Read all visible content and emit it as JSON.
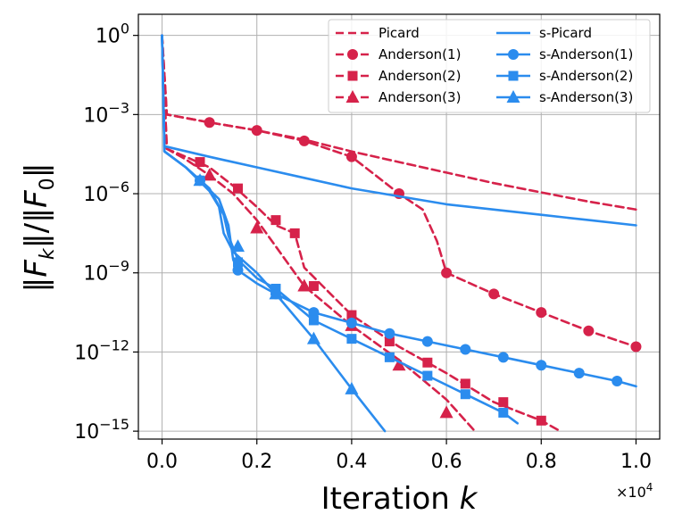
{
  "chart_data": {
    "type": "line",
    "xlabel": "Iteration k",
    "ylabel": "‖F_k‖/‖F_0‖",
    "x_offset_label": "×10^4",
    "xlim": [
      -0.05,
      1.05
    ],
    "ylim_log10": [
      -15.3,
      0.8
    ],
    "x_ticks": [
      0.0,
      0.2,
      0.4,
      0.6,
      0.8,
      1.0
    ],
    "x_tick_labels": [
      "0.0",
      "0.2",
      "0.4",
      "0.6",
      "0.8",
      "1.0"
    ],
    "y_ticks_log10": [
      0,
      -3,
      -6,
      -9,
      -12,
      -15
    ],
    "y_tick_labels": [
      {
        "base": "10",
        "exp": "0"
      },
      {
        "base": "10",
        "exp": "−3"
      },
      {
        "base": "10",
        "exp": "−6"
      },
      {
        "base": "10",
        "exp": "−9"
      },
      {
        "base": "10",
        "exp": "−12"
      },
      {
        "base": "10",
        "exp": "−15"
      }
    ],
    "grid": true,
    "legend_position": "top-right",
    "colors": {
      "red": "#d6224a",
      "blue": "#2b8cee"
    },
    "series": [
      {
        "name": "Picard",
        "color": "#d6224a",
        "dash": true,
        "marker": "none",
        "points": [
          [
            0,
            0
          ],
          [
            0.01,
            -3
          ],
          [
            0.1,
            -3.3
          ],
          [
            0.2,
            -3.6
          ],
          [
            0.3,
            -3.95
          ],
          [
            0.4,
            -4.4
          ],
          [
            0.5,
            -4.8
          ],
          [
            0.6,
            -5.2
          ],
          [
            0.7,
            -5.6
          ],
          [
            0.8,
            -5.95
          ],
          [
            0.9,
            -6.3
          ],
          [
            1.0,
            -6.6
          ]
        ],
        "markers": []
      },
      {
        "name": "Anderson(1)",
        "color": "#d6224a",
        "dash": true,
        "marker": "circle",
        "points": [
          [
            0,
            0
          ],
          [
            0.01,
            -3
          ],
          [
            0.1,
            -3.3
          ],
          [
            0.2,
            -3.6
          ],
          [
            0.3,
            -4.0
          ],
          [
            0.4,
            -4.6
          ],
          [
            0.45,
            -5.3
          ],
          [
            0.5,
            -6.0
          ],
          [
            0.55,
            -6.6
          ],
          [
            0.58,
            -7.8
          ],
          [
            0.6,
            -9.0
          ],
          [
            0.7,
            -9.8
          ],
          [
            0.8,
            -10.5
          ],
          [
            0.9,
            -11.2
          ],
          [
            1.0,
            -11.8
          ]
        ],
        "markers": [
          [
            0.1,
            -3.3
          ],
          [
            0.2,
            -3.6
          ],
          [
            0.3,
            -4.0
          ],
          [
            0.4,
            -4.6
          ],
          [
            0.5,
            -6.0
          ],
          [
            0.6,
            -9.0
          ],
          [
            0.7,
            -9.8
          ],
          [
            0.8,
            -10.5
          ],
          [
            0.9,
            -11.2
          ],
          [
            1.0,
            -11.8
          ]
        ]
      },
      {
        "name": "Anderson(2)",
        "color": "#d6224a",
        "dash": true,
        "marker": "square",
        "points": [
          [
            0,
            0
          ],
          [
            0.01,
            -4.3
          ],
          [
            0.05,
            -4.6
          ],
          [
            0.1,
            -5.0
          ],
          [
            0.15,
            -5.7
          ],
          [
            0.2,
            -6.5
          ],
          [
            0.24,
            -7.2
          ],
          [
            0.28,
            -7.5
          ],
          [
            0.3,
            -8.8
          ],
          [
            0.4,
            -10.6
          ],
          [
            0.5,
            -11.8
          ],
          [
            0.6,
            -12.8
          ],
          [
            0.7,
            -13.9
          ],
          [
            0.8,
            -14.6
          ],
          [
            0.84,
            -15.0
          ]
        ],
        "markers": [
          [
            0.08,
            -4.8
          ],
          [
            0.16,
            -5.8
          ],
          [
            0.24,
            -7.0
          ],
          [
            0.28,
            -7.5
          ],
          [
            0.32,
            -9.5
          ],
          [
            0.4,
            -10.6
          ],
          [
            0.48,
            -11.6
          ],
          [
            0.56,
            -12.4
          ],
          [
            0.64,
            -13.2
          ],
          [
            0.72,
            -13.9
          ],
          [
            0.8,
            -14.6
          ]
        ]
      },
      {
        "name": "Anderson(3)",
        "color": "#d6224a",
        "dash": true,
        "marker": "triangle",
        "points": [
          [
            0,
            0
          ],
          [
            0.01,
            -4.3
          ],
          [
            0.05,
            -4.7
          ],
          [
            0.1,
            -5.3
          ],
          [
            0.15,
            -6.0
          ],
          [
            0.2,
            -7.0
          ],
          [
            0.24,
            -8.0
          ],
          [
            0.26,
            -8.5
          ],
          [
            0.3,
            -9.5
          ],
          [
            0.4,
            -11.0
          ],
          [
            0.5,
            -12.3
          ],
          [
            0.6,
            -13.8
          ],
          [
            0.66,
            -15.0
          ]
        ],
        "markers": [
          [
            0.1,
            -5.3
          ],
          [
            0.2,
            -7.3
          ],
          [
            0.3,
            -9.5
          ],
          [
            0.4,
            -11.0
          ],
          [
            0.5,
            -12.5
          ],
          [
            0.6,
            -14.3
          ]
        ]
      },
      {
        "name": "s-Picard",
        "color": "#2b8cee",
        "dash": false,
        "marker": "none",
        "points": [
          [
            0,
            0
          ],
          [
            0.005,
            -4.2
          ],
          [
            0.1,
            -4.6
          ],
          [
            0.2,
            -5.0
          ],
          [
            0.3,
            -5.4
          ],
          [
            0.4,
            -5.8
          ],
          [
            0.5,
            -6.1
          ],
          [
            0.6,
            -6.4
          ],
          [
            0.7,
            -6.6
          ],
          [
            0.8,
            -6.8
          ],
          [
            0.9,
            -7.0
          ],
          [
            1.0,
            -7.2
          ]
        ],
        "markers": []
      },
      {
        "name": "s-Anderson(1)",
        "color": "#2b8cee",
        "dash": false,
        "marker": "circle",
        "points": [
          [
            0,
            0
          ],
          [
            0.005,
            -4.4
          ],
          [
            0.05,
            -5.0
          ],
          [
            0.08,
            -5.5
          ],
          [
            0.12,
            -6.2
          ],
          [
            0.14,
            -7.2
          ],
          [
            0.15,
            -8.5
          ],
          [
            0.16,
            -8.9
          ],
          [
            0.2,
            -9.4
          ],
          [
            0.24,
            -9.8
          ],
          [
            0.32,
            -10.5
          ],
          [
            0.4,
            -10.9
          ],
          [
            0.48,
            -11.3
          ],
          [
            0.56,
            -11.6
          ],
          [
            0.64,
            -11.9
          ],
          [
            0.72,
            -12.2
          ],
          [
            0.8,
            -12.5
          ],
          [
            0.88,
            -12.8
          ],
          [
            0.96,
            -13.1
          ],
          [
            1.0,
            -13.3
          ]
        ],
        "markers": [
          [
            0.08,
            -5.5
          ],
          [
            0.16,
            -8.9
          ],
          [
            0.24,
            -9.8
          ],
          [
            0.32,
            -10.5
          ],
          [
            0.4,
            -10.9
          ],
          [
            0.48,
            -11.3
          ],
          [
            0.56,
            -11.6
          ],
          [
            0.64,
            -11.9
          ],
          [
            0.72,
            -12.2
          ],
          [
            0.8,
            -12.5
          ],
          [
            0.88,
            -12.8
          ],
          [
            0.96,
            -13.1
          ]
        ]
      },
      {
        "name": "s-Anderson(2)",
        "color": "#2b8cee",
        "dash": false,
        "marker": "square",
        "points": [
          [
            0,
            0
          ],
          [
            0.005,
            -4.4
          ],
          [
            0.05,
            -5.0
          ],
          [
            0.1,
            -5.8
          ],
          [
            0.13,
            -6.8
          ],
          [
            0.14,
            -7.6
          ],
          [
            0.16,
            -8.5
          ],
          [
            0.2,
            -9.2
          ],
          [
            0.24,
            -9.6
          ],
          [
            0.32,
            -10.8
          ],
          [
            0.4,
            -11.5
          ],
          [
            0.48,
            -12.2
          ],
          [
            0.56,
            -12.9
          ],
          [
            0.64,
            -13.6
          ],
          [
            0.72,
            -14.3
          ],
          [
            0.75,
            -14.7
          ]
        ],
        "markers": [
          [
            0.08,
            -5.5
          ],
          [
            0.16,
            -8.6
          ],
          [
            0.24,
            -9.6
          ],
          [
            0.32,
            -10.8
          ],
          [
            0.4,
            -11.5
          ],
          [
            0.48,
            -12.2
          ],
          [
            0.56,
            -12.9
          ],
          [
            0.64,
            -13.6
          ],
          [
            0.72,
            -14.3
          ]
        ]
      },
      {
        "name": "s-Anderson(3)",
        "color": "#2b8cee",
        "dash": false,
        "marker": "triangle",
        "points": [
          [
            0,
            0
          ],
          [
            0.005,
            -4.4
          ],
          [
            0.05,
            -5.0
          ],
          [
            0.1,
            -5.9
          ],
          [
            0.12,
            -6.5
          ],
          [
            0.13,
            -7.5
          ],
          [
            0.15,
            -8.2
          ],
          [
            0.2,
            -9.0
          ],
          [
            0.24,
            -9.8
          ],
          [
            0.32,
            -11.5
          ],
          [
            0.4,
            -13.4
          ],
          [
            0.47,
            -15.0
          ]
        ],
        "markers": [
          [
            0.08,
            -5.5
          ],
          [
            0.16,
            -8.0
          ],
          [
            0.24,
            -9.8
          ],
          [
            0.32,
            -11.5
          ],
          [
            0.4,
            -13.4
          ]
        ]
      }
    ]
  }
}
